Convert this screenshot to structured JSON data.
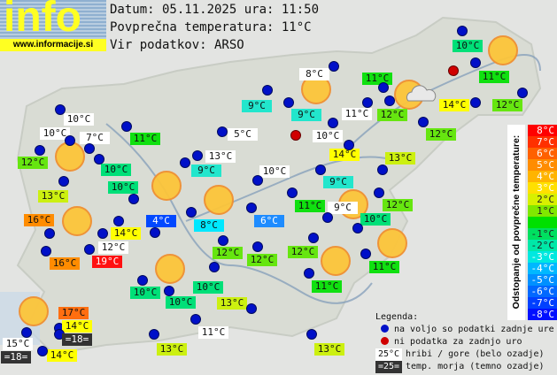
{
  "logo": {
    "text": "info",
    "url": "www.informacije.si"
  },
  "header": {
    "date_line": "Datum: 05.11.2025 ura: 11:50",
    "avg_line": "Povprečna temperatura: 11°C",
    "source_line": "Vir podatkov: ARSO"
  },
  "tone_colors": {
    "mountain": "#ffffff",
    "sea": "#333333",
    "4": "#0048ff",
    "6": "#1e8cff",
    "8": "#00e8ff",
    "9": "#22e6cc",
    "10": "#00e078",
    "11": "#10e010",
    "12": "#66e610",
    "13": "#ccf010",
    "14": "#ffff00",
    "16": "#ff8c00",
    "17": "#ff6e10",
    "19": "#ff1010"
  },
  "stations": [
    {
      "t": "10°C",
      "tone": "mountain"
    },
    {
      "t": "10°C",
      "tone": "mountain"
    },
    {
      "t": "7°C",
      "tone": "mountain"
    },
    {
      "t": "11°C",
      "tone": "11"
    },
    {
      "t": "12°C",
      "tone": "12"
    },
    {
      "t": "10°C",
      "tone": "10"
    },
    {
      "t": "13°C",
      "tone": "13"
    },
    {
      "t": "10°C",
      "tone": "10"
    },
    {
      "t": "16°C",
      "tone": "16"
    },
    {
      "t": "14°C",
      "tone": "14"
    },
    {
      "t": "4°C",
      "tone": "4"
    },
    {
      "t": "12°C",
      "tone": "mountain"
    },
    {
      "t": "19°C",
      "tone": "19"
    },
    {
      "t": "16°C",
      "tone": "16"
    },
    {
      "t": "8°C",
      "tone": "8"
    },
    {
      "t": "9°C",
      "tone": "9"
    },
    {
      "t": "8°C",
      "tone": "mountain"
    },
    {
      "t": "9°C",
      "tone": "9"
    },
    {
      "t": "5°C",
      "tone": "mountain"
    },
    {
      "t": "10°C",
      "tone": "mountain"
    },
    {
      "t": "11°C",
      "tone": "mountain"
    },
    {
      "t": "13°C",
      "tone": "mountain"
    },
    {
      "t": "9°C",
      "tone": "9"
    },
    {
      "t": "10°C",
      "tone": "mountain"
    },
    {
      "t": "14°C",
      "tone": "14"
    },
    {
      "t": "9°C",
      "tone": "9"
    },
    {
      "t": "11°C",
      "tone": "11"
    },
    {
      "t": "9°C",
      "tone": "mountain"
    },
    {
      "t": "6°C",
      "tone": "6"
    },
    {
      "t": "10°C",
      "tone": "10"
    },
    {
      "t": "11°C",
      "tone": "11"
    },
    {
      "t": "12°C",
      "tone": "12"
    },
    {
      "t": "10°C",
      "tone": "10"
    },
    {
      "t": "11°C",
      "tone": "11"
    },
    {
      "t": "14°C",
      "tone": "14"
    },
    {
      "t": "12°C",
      "tone": "12"
    },
    {
      "t": "12°C",
      "tone": "12"
    },
    {
      "t": "13°C",
      "tone": "13"
    },
    {
      "t": "12°C",
      "tone": "12"
    },
    {
      "t": "11°C",
      "tone": "11"
    },
    {
      "t": "12°C",
      "tone": "12"
    },
    {
      "t": "12°C",
      "tone": "12"
    },
    {
      "t": "12°C",
      "tone": "12"
    },
    {
      "t": "11°C",
      "tone": "11"
    },
    {
      "t": "10°C",
      "tone": "10"
    },
    {
      "t": "10°C",
      "tone": "10"
    },
    {
      "t": "10°C",
      "tone": "10"
    },
    {
      "t": "13°C",
      "tone": "13"
    },
    {
      "t": "11°C",
      "tone": "mountain"
    },
    {
      "t": "13°C",
      "tone": "13"
    },
    {
      "t": "13°C",
      "tone": "13"
    },
    {
      "t": "17°C",
      "tone": "17"
    },
    {
      "t": "14°C",
      "tone": "14"
    },
    {
      "t": "=18=",
      "tone": "sea"
    },
    {
      "t": "15°C",
      "tone": "mountain"
    },
    {
      "t": "=18=",
      "tone": "sea"
    },
    {
      "t": "14°C",
      "tone": "14"
    }
  ],
  "scale": {
    "title": "Odstopanje od povprečne temperature:",
    "steps": [
      {
        "label": "8°C",
        "color": "#ff0000"
      },
      {
        "label": "7°C",
        "color": "#ff3000"
      },
      {
        "label": "6°C",
        "color": "#ff6000"
      },
      {
        "label": "5°C",
        "color": "#ff8c00"
      },
      {
        "label": "4°C",
        "color": "#ffb400"
      },
      {
        "label": "3°C",
        "color": "#ffe000"
      },
      {
        "label": "2°C",
        "color": "#d8f000"
      },
      {
        "label": "1°C",
        "color": "#80e800"
      },
      {
        "label": "",
        "color": "#00e000"
      },
      {
        "label": "-1°C",
        "color": "#00e060"
      },
      {
        "label": "-2°C",
        "color": "#00e8a8"
      },
      {
        "label": "-3°C",
        "color": "#00e8e0"
      },
      {
        "label": "-4°C",
        "color": "#00b8ff"
      },
      {
        "label": "-5°C",
        "color": "#0090ff"
      },
      {
        "label": "-6°C",
        "color": "#0068ff"
      },
      {
        "label": "-7°C",
        "color": "#0040ff"
      },
      {
        "label": "-8°C",
        "color": "#0010ff"
      }
    ]
  },
  "legend": {
    "title": "Legenda:",
    "blue_dot": "na voljo so podatki zadnje ure",
    "red_dot": "ni podatka za zadnjo uro",
    "mountain_sample": "25°C",
    "mountain_text": "hribi / gore (belo ozadje)",
    "sea_sample": "=25=",
    "sea_text": "temp. morja (temno ozadje)"
  }
}
